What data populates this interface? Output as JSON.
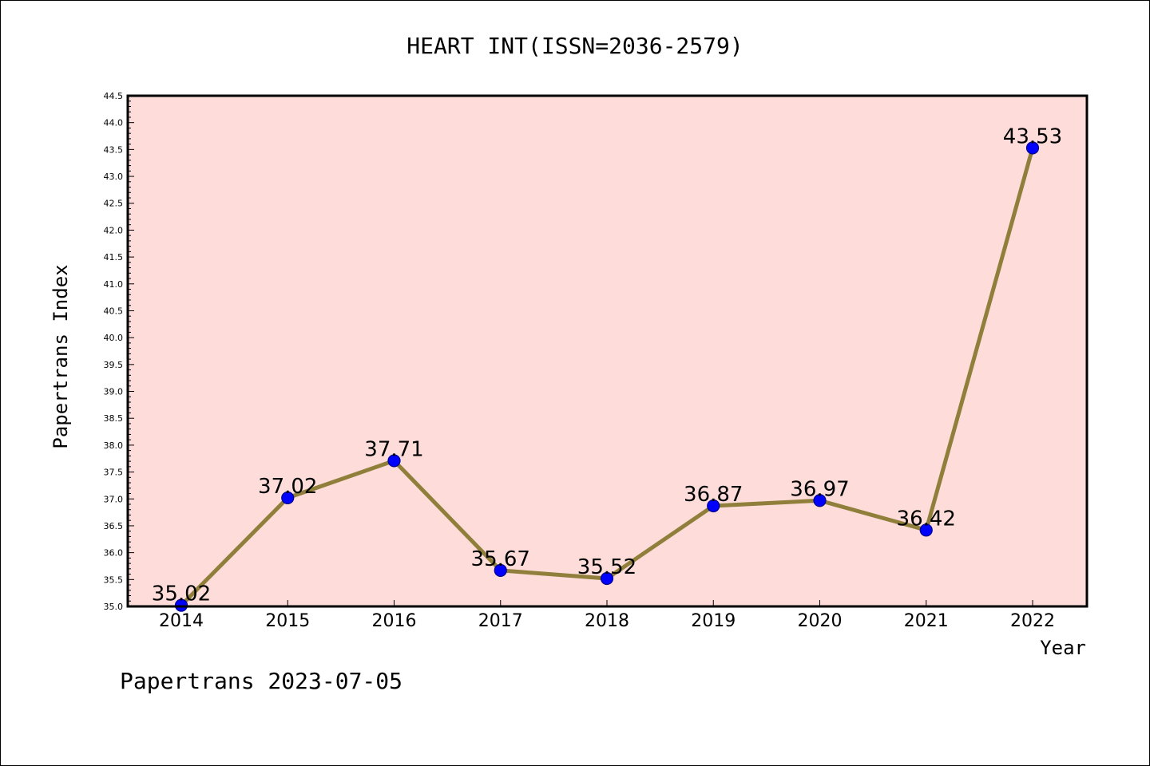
{
  "footer": "Papertrans 2023-07-05",
  "colors": {
    "plot_background": "#fddcd9",
    "line": "#8f7f3a",
    "marker_fill": "#0000ff",
    "marker_edge": "#00008b"
  },
  "chart_data": {
    "type": "line",
    "title": "HEART INT(ISSN=2036-2579)",
    "xlabel": "Year",
    "ylabel": "Papertrans Index",
    "categories": [
      "2014",
      "2015",
      "2016",
      "2017",
      "2018",
      "2019",
      "2020",
      "2021",
      "2022"
    ],
    "series": [
      {
        "values": [
          35.02,
          37.02,
          37.71,
          35.67,
          35.52,
          36.87,
          36.97,
          36.42,
          43.53
        ],
        "labels": [
          "35.02",
          "37.02",
          "37.71",
          "35.67",
          "35.52",
          "36.87",
          "36.97",
          "36.42",
          "43.53"
        ]
      }
    ],
    "ylim": [
      35.0,
      44.5
    ],
    "yticks": [
      "35.0",
      "35.5",
      "36.0",
      "36.5",
      "37.0",
      "37.5",
      "38.0",
      "38.5",
      "39.0",
      "39.5",
      "40.0",
      "40.5",
      "41.0",
      "41.5",
      "42.0",
      "42.5",
      "43.0",
      "43.5",
      "44.0",
      "44.5"
    ],
    "grid": false,
    "legend": "none"
  }
}
